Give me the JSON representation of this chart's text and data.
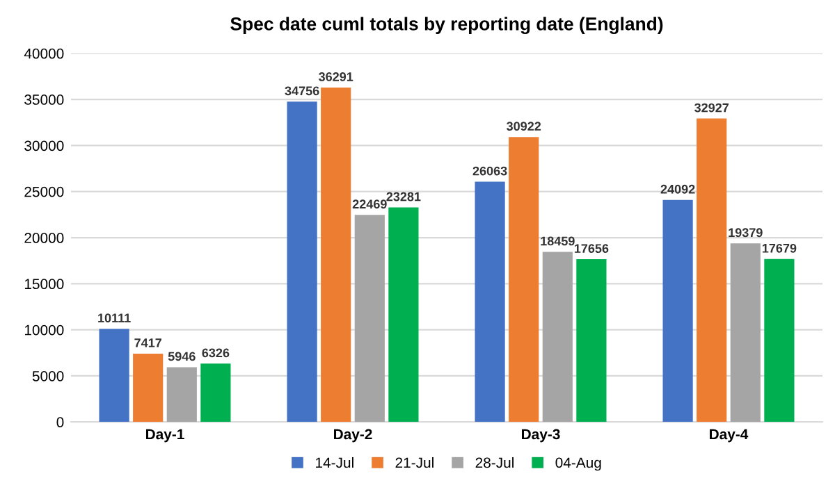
{
  "chart_data": {
    "type": "bar",
    "title": "Spec date cuml totals by reporting date (England)",
    "categories": [
      "Day-1",
      "Day-2",
      "Day-3",
      "Day-4"
    ],
    "series": [
      {
        "name": "14-Jul",
        "color": "#4472c4",
        "values": [
          10111,
          34756,
          26063,
          24092
        ]
      },
      {
        "name": "21-Jul",
        "color": "#ed7d31",
        "values": [
          7417,
          36291,
          30922,
          32927
        ]
      },
      {
        "name": "28-Jul",
        "color": "#a5a5a5",
        "values": [
          5946,
          22469,
          18459,
          19379
        ]
      },
      {
        "name": "04-Aug",
        "color": "#00b050",
        "values": [
          6326,
          23281,
          17656,
          17679
        ]
      }
    ],
    "ylim": [
      0,
      40000
    ],
    "yticks": [
      0,
      5000,
      10000,
      15000,
      20000,
      25000,
      30000,
      35000,
      40000
    ],
    "grid": "y",
    "legend": "bottom",
    "data_labels": true
  }
}
